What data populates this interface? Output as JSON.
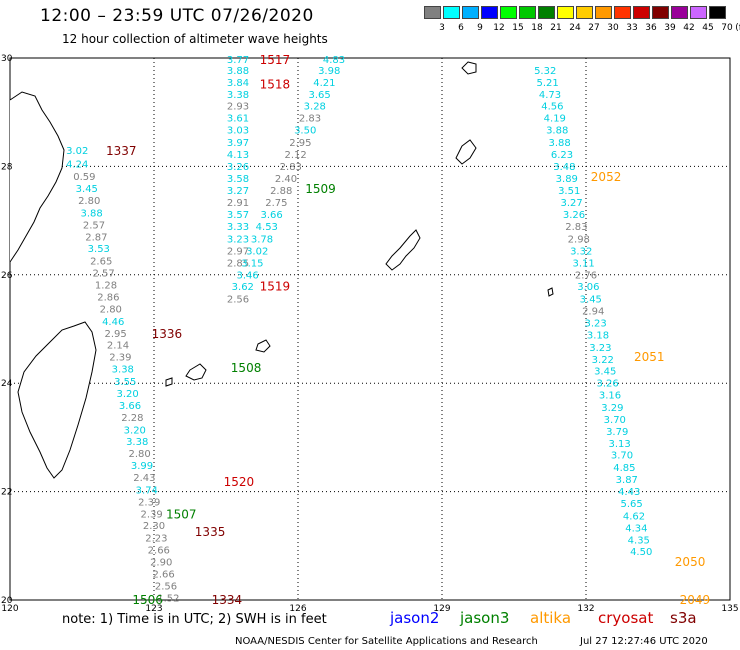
{
  "header": {
    "title": "12:00 – 23:59 UTC 07/26/2020",
    "subtitle": "12 hour collection of altimeter wave heights"
  },
  "legend": {
    "unit": "(ft)",
    "items": [
      {
        "label": "3",
        "color": "#808080"
      },
      {
        "label": "6",
        "color": "#00ffff"
      },
      {
        "label": "9",
        "color": "#00b0ff"
      },
      {
        "label": "12",
        "color": "#0000ff"
      },
      {
        "label": "15",
        "color": "#00ff00"
      },
      {
        "label": "18",
        "color": "#00c800"
      },
      {
        "label": "21",
        "color": "#008000"
      },
      {
        "label": "24",
        "color": "#ffff00"
      },
      {
        "label": "27",
        "color": "#ffcc00"
      },
      {
        "label": "30",
        "color": "#ff9900"
      },
      {
        "label": "33",
        "color": "#ff3300"
      },
      {
        "label": "36",
        "color": "#cc0000"
      },
      {
        "label": "39",
        "color": "#800000"
      },
      {
        "label": "42",
        "color": "#990099"
      },
      {
        "label": "45",
        "color": "#cc66ff"
      },
      {
        "label": "70",
        "color": "#000000"
      }
    ]
  },
  "map": {
    "lat_labels": [
      "30",
      "28",
      "26",
      "24",
      "22",
      "20"
    ],
    "lon_labels": [
      "120",
      "123",
      "126",
      "129",
      "132",
      "135"
    ],
    "lon_range": [
      120,
      135
    ],
    "lat_range": [
      20,
      30
    ],
    "grid": "dotted"
  },
  "colors": {
    "jason2": "#0000ff",
    "jason3": "#008000",
    "altika": "#ff9900",
    "cryosat": "#cc0000",
    "s3a": "#800000",
    "low_swh": "#808080",
    "mid_swh": "#00d0e0"
  },
  "tracks": [
    {
      "time": "1517",
      "sat": "cryosat",
      "lon": 125.2,
      "lat": 29.98
    },
    {
      "time": "1518",
      "sat": "cryosat",
      "lon": 125.2,
      "lat": 29.53
    },
    {
      "time": "1509",
      "sat": "jason3",
      "lon": 126.15,
      "lat": 27.6
    },
    {
      "time": "1519",
      "sat": "cryosat",
      "lon": 125.2,
      "lat": 25.8
    },
    {
      "time": "1508",
      "sat": "jason3",
      "lon": 124.6,
      "lat": 24.3
    },
    {
      "time": "1520",
      "sat": "cryosat",
      "lon": 124.45,
      "lat": 22.2
    },
    {
      "time": "1507",
      "sat": "jason3",
      "lon": 123.25,
      "lat": 21.6
    },
    {
      "time": "1506",
      "sat": "jason3",
      "lon": 122.55,
      "lat": 20.02
    },
    {
      "time": "1337",
      "sat": "s3a",
      "lon": 122.0,
      "lat": 28.3
    },
    {
      "time": "1336",
      "sat": "s3a",
      "lon": 122.95,
      "lat": 24.93
    },
    {
      "time": "1335",
      "sat": "s3a",
      "lon": 123.85,
      "lat": 21.27
    },
    {
      "time": "1334",
      "sat": "s3a",
      "lon": 124.2,
      "lat": 20.02
    },
    {
      "time": "2052",
      "sat": "altika",
      "lon": 132.1,
      "lat": 27.82
    },
    {
      "time": "2051",
      "sat": "altika",
      "lon": 133.0,
      "lat": 24.5
    },
    {
      "time": "2050",
      "sat": "altika",
      "lon": 133.85,
      "lat": 20.72
    },
    {
      "time": "2049",
      "sat": "altika",
      "lon": 133.95,
      "lat": 20.02
    }
  ],
  "swh_points": [
    {
      "v": "3.77",
      "c": "cyan",
      "lon": 124.75,
      "lat": 29.98
    },
    {
      "v": "3.88",
      "c": "cyan",
      "lon": 124.75,
      "lat": 29.78
    },
    {
      "v": "3.84",
      "c": "cyan",
      "lon": 124.75,
      "lat": 29.56
    },
    {
      "v": "3.38",
      "c": "cyan",
      "lon": 124.75,
      "lat": 29.34
    },
    {
      "v": "2.93",
      "c": "gray",
      "lon": 124.75,
      "lat": 29.12
    },
    {
      "v": "3.61",
      "c": "cyan",
      "lon": 124.75,
      "lat": 28.9
    },
    {
      "v": "3.03",
      "c": "cyan",
      "lon": 124.75,
      "lat": 28.68
    },
    {
      "v": "3.97",
      "c": "cyan",
      "lon": 124.75,
      "lat": 28.45
    },
    {
      "v": "4.13",
      "c": "cyan",
      "lon": 124.75,
      "lat": 28.23
    },
    {
      "v": "3.26",
      "c": "cyan",
      "lon": 124.75,
      "lat": 28.01
    },
    {
      "v": "3.58",
      "c": "cyan",
      "lon": 124.75,
      "lat": 27.79
    },
    {
      "v": "3.27",
      "c": "cyan",
      "lon": 124.75,
      "lat": 27.56
    },
    {
      "v": "2.91",
      "c": "gray",
      "lon": 124.75,
      "lat": 27.34
    },
    {
      "v": "3.57",
      "c": "cyan",
      "lon": 124.75,
      "lat": 27.12
    },
    {
      "v": "3.33",
      "c": "cyan",
      "lon": 124.75,
      "lat": 26.9
    },
    {
      "v": "3.23",
      "c": "cyan",
      "lon": 124.75,
      "lat": 26.67
    },
    {
      "v": "2.97",
      "c": "gray",
      "lon": 124.75,
      "lat": 26.45
    },
    {
      "v": "2.85",
      "c": "gray",
      "lon": 124.75,
      "lat": 26.23
    },
    {
      "v": "4.83",
      "c": "cyan",
      "lon": 126.75,
      "lat": 29.98
    },
    {
      "v": "3.98",
      "c": "cyan",
      "lon": 126.65,
      "lat": 29.78
    },
    {
      "v": "4.21",
      "c": "cyan",
      "lon": 126.55,
      "lat": 29.56
    },
    {
      "v": "3.65",
      "c": "cyan",
      "lon": 126.45,
      "lat": 29.34
    },
    {
      "v": "3.28",
      "c": "cyan",
      "lon": 126.35,
      "lat": 29.12
    },
    {
      "v": "2.83",
      "c": "gray",
      "lon": 126.25,
      "lat": 28.9
    },
    {
      "v": "3.50",
      "c": "cyan",
      "lon": 126.15,
      "lat": 28.68
    },
    {
      "v": "2.95",
      "c": "gray",
      "lon": 126.05,
      "lat": 28.45
    },
    {
      "v": "2.12",
      "c": "gray",
      "lon": 125.95,
      "lat": 28.23
    },
    {
      "v": "2.83",
      "c": "gray",
      "lon": 125.85,
      "lat": 28.01
    },
    {
      "v": "2.40",
      "c": "gray",
      "lon": 125.75,
      "lat": 27.79
    },
    {
      "v": "2.88",
      "c": "gray",
      "lon": 125.65,
      "lat": 27.56
    },
    {
      "v": "2.75",
      "c": "gray",
      "lon": 125.55,
      "lat": 27.34
    },
    {
      "v": "3.66",
      "c": "cyan",
      "lon": 125.45,
      "lat": 27.12
    },
    {
      "v": "4.53",
      "c": "cyan",
      "lon": 125.35,
      "lat": 26.9
    },
    {
      "v": "3.78",
      "c": "cyan",
      "lon": 125.25,
      "lat": 26.67
    },
    {
      "v": "3.02",
      "c": "cyan",
      "lon": 125.15,
      "lat": 26.45
    },
    {
      "v": "3.15",
      "c": "cyan",
      "lon": 125.05,
      "lat": 26.23
    },
    {
      "v": "3.46",
      "c": "cyan",
      "lon": 124.95,
      "lat": 26.01
    },
    {
      "v": "3.62",
      "c": "cyan",
      "lon": 124.85,
      "lat": 25.79
    },
    {
      "v": "2.56",
      "c": "gray",
      "lon": 124.75,
      "lat": 25.56
    },
    {
      "v": "5.32",
      "c": "cyan",
      "lon": 131.15,
      "lat": 29.78
    },
    {
      "v": "5.21",
      "c": "cyan",
      "lon": 131.2,
      "lat": 29.56
    },
    {
      "v": "4.73",
      "c": "cyan",
      "lon": 131.25,
      "lat": 29.34
    },
    {
      "v": "4.56",
      "c": "cyan",
      "lon": 131.3,
      "lat": 29.12
    },
    {
      "v": "4.19",
      "c": "cyan",
      "lon": 131.35,
      "lat": 28.9
    },
    {
      "v": "3.88",
      "c": "cyan",
      "lon": 131.4,
      "lat": 28.68
    },
    {
      "v": "3.88",
      "c": "cyan",
      "lon": 131.45,
      "lat": 28.45
    },
    {
      "v": "6.23",
      "c": "cyan",
      "lon": 131.5,
      "lat": 28.23
    },
    {
      "v": "3.48",
      "c": "cyan",
      "lon": 131.55,
      "lat": 28.01
    },
    {
      "v": "3.89",
      "c": "cyan",
      "lon": 131.6,
      "lat": 27.79
    },
    {
      "v": "3.51",
      "c": "cyan",
      "lon": 131.65,
      "lat": 27.56
    },
    {
      "v": "3.27",
      "c": "cyan",
      "lon": 131.7,
      "lat": 27.34
    },
    {
      "v": "3.26",
      "c": "cyan",
      "lon": 131.75,
      "lat": 27.12
    },
    {
      "v": "2.83",
      "c": "gray",
      "lon": 131.8,
      "lat": 26.9
    },
    {
      "v": "2.98",
      "c": "gray",
      "lon": 131.85,
      "lat": 26.67
    },
    {
      "v": "3.32",
      "c": "cyan",
      "lon": 131.9,
      "lat": 26.45
    },
    {
      "v": "3.11",
      "c": "cyan",
      "lon": 131.95,
      "lat": 26.23
    },
    {
      "v": "2.76",
      "c": "gray",
      "lon": 132.0,
      "lat": 26.01
    },
    {
      "v": "3.06",
      "c": "cyan",
      "lon": 132.05,
      "lat": 25.79
    },
    {
      "v": "3.45",
      "c": "cyan",
      "lon": 132.1,
      "lat": 25.56
    },
    {
      "v": "2.94",
      "c": "gray",
      "lon": 132.15,
      "lat": 25.34
    },
    {
      "v": "3.23",
      "c": "cyan",
      "lon": 132.2,
      "lat": 25.12
    },
    {
      "v": "3.18",
      "c": "cyan",
      "lon": 132.25,
      "lat": 24.9
    },
    {
      "v": "3.23",
      "c": "cyan",
      "lon": 132.3,
      "lat": 24.67
    },
    {
      "v": "3.22",
      "c": "cyan",
      "lon": 132.35,
      "lat": 24.45
    },
    {
      "v": "3.45",
      "c": "cyan",
      "lon": 132.4,
      "lat": 24.23
    },
    {
      "v": "3.26",
      "c": "cyan",
      "lon": 132.45,
      "lat": 24.01
    },
    {
      "v": "3.16",
      "c": "cyan",
      "lon": 132.5,
      "lat": 23.79
    },
    {
      "v": "3.29",
      "c": "cyan",
      "lon": 132.55,
      "lat": 23.56
    },
    {
      "v": "3.70",
      "c": "cyan",
      "lon": 132.6,
      "lat": 23.34
    },
    {
      "v": "3.79",
      "c": "cyan",
      "lon": 132.65,
      "lat": 23.12
    },
    {
      "v": "3.13",
      "c": "cyan",
      "lon": 132.7,
      "lat": 22.9
    },
    {
      "v": "3.70",
      "c": "cyan",
      "lon": 132.75,
      "lat": 22.68
    },
    {
      "v": "4.85",
      "c": "cyan",
      "lon": 132.8,
      "lat": 22.45
    },
    {
      "v": "3.87",
      "c": "cyan",
      "lon": 132.85,
      "lat": 22.23
    },
    {
      "v": "4.43",
      "c": "cyan",
      "lon": 132.9,
      "lat": 22.01
    },
    {
      "v": "5.65",
      "c": "cyan",
      "lon": 132.95,
      "lat": 21.79
    },
    {
      "v": "4.62",
      "c": "cyan",
      "lon": 133.0,
      "lat": 21.56
    },
    {
      "v": "4.34",
      "c": "cyan",
      "lon": 133.05,
      "lat": 21.34
    },
    {
      "v": "4.35",
      "c": "cyan",
      "lon": 133.1,
      "lat": 21.12
    },
    {
      "v": "4.50",
      "c": "cyan",
      "lon": 133.15,
      "lat": 20.9
    },
    {
      "v": "3.02",
      "c": "cyan",
      "lon": 121.4,
      "lat": 28.3
    },
    {
      "v": "4.24",
      "c": "cyan",
      "lon": 121.4,
      "lat": 28.05
    },
    {
      "v": "0.59",
      "c": "gray",
      "lon": 121.55,
      "lat": 27.82
    },
    {
      "v": "3.45",
      "c": "cyan",
      "lon": 121.6,
      "lat": 27.6
    },
    {
      "v": "2.80",
      "c": "gray",
      "lon": 121.65,
      "lat": 27.38
    },
    {
      "v": "3.88",
      "c": "cyan",
      "lon": 121.7,
      "lat": 27.15
    },
    {
      "v": "2.57",
      "c": "gray",
      "lon": 121.75,
      "lat": 26.93
    },
    {
      "v": "2.87",
      "c": "gray",
      "lon": 121.8,
      "lat": 26.71
    },
    {
      "v": "3.53",
      "c": "cyan",
      "lon": 121.85,
      "lat": 26.49
    },
    {
      "v": "2.65",
      "c": "gray",
      "lon": 121.9,
      "lat": 26.26
    },
    {
      "v": "2.57",
      "c": "gray",
      "lon": 121.95,
      "lat": 26.04
    },
    {
      "v": "1.28",
      "c": "gray",
      "lon": 122.0,
      "lat": 25.82
    },
    {
      "v": "2.86",
      "c": "gray",
      "lon": 122.05,
      "lat": 25.6
    },
    {
      "v": "2.80",
      "c": "gray",
      "lon": 122.1,
      "lat": 25.38
    },
    {
      "v": "4.46",
      "c": "cyan",
      "lon": 122.15,
      "lat": 25.15
    },
    {
      "v": "2.95",
      "c": "gray",
      "lon": 122.2,
      "lat": 24.93
    },
    {
      "v": "2.14",
      "c": "gray",
      "lon": 122.25,
      "lat": 24.71
    },
    {
      "v": "2.39",
      "c": "gray",
      "lon": 122.3,
      "lat": 24.49
    },
    {
      "v": "3.38",
      "c": "cyan",
      "lon": 122.35,
      "lat": 24.27
    },
    {
      "v": "3.55",
      "c": "cyan",
      "lon": 122.4,
      "lat": 24.04
    },
    {
      "v": "3.20",
      "c": "cyan",
      "lon": 122.45,
      "lat": 23.82
    },
    {
      "v": "3.66",
      "c": "cyan",
      "lon": 122.5,
      "lat": 23.6
    },
    {
      "v": "2.28",
      "c": "gray",
      "lon": 122.55,
      "lat": 23.38
    },
    {
      "v": "3.20",
      "c": "cyan",
      "lon": 122.6,
      "lat": 23.15
    },
    {
      "v": "3.38",
      "c": "cyan",
      "lon": 122.65,
      "lat": 22.93
    },
    {
      "v": "2.80",
      "c": "gray",
      "lon": 122.7,
      "lat": 22.71
    },
    {
      "v": "3.99",
      "c": "cyan",
      "lon": 122.75,
      "lat": 22.49
    },
    {
      "v": "2.43",
      "c": "gray",
      "lon": 122.8,
      "lat": 22.27
    },
    {
      "v": "3.74",
      "c": "cyan",
      "lon": 122.85,
      "lat": 22.04
    },
    {
      "v": "2.39",
      "c": "gray",
      "lon": 122.9,
      "lat": 21.82
    },
    {
      "v": "2.39",
      "c": "gray",
      "lon": 122.95,
      "lat": 21.6
    },
    {
      "v": "2.30",
      "c": "gray",
      "lon": 123.0,
      "lat": 21.38
    },
    {
      "v": "2.23",
      "c": "gray",
      "lon": 123.05,
      "lat": 21.15
    },
    {
      "v": "2.66",
      "c": "gray",
      "lon": 123.1,
      "lat": 20.93
    },
    {
      "v": "2.90",
      "c": "gray",
      "lon": 123.15,
      "lat": 20.71
    },
    {
      "v": "2.66",
      "c": "gray",
      "lon": 123.2,
      "lat": 20.49
    },
    {
      "v": "2.56",
      "c": "gray",
      "lon": 123.25,
      "lat": 20.27
    },
    {
      "v": "1.52",
      "c": "gray",
      "lon": 123.3,
      "lat": 20.05
    }
  ],
  "footer": {
    "note": "note: 1) Time is in UTC; 2) SWH is in feet",
    "missions": [
      {
        "label": "jason2",
        "color": "#0000ff"
      },
      {
        "label": "jason3",
        "color": "#008000"
      },
      {
        "label": "altika",
        "color": "#ff9900"
      },
      {
        "label": "cryosat",
        "color": "#cc0000"
      },
      {
        "label": "s3a",
        "color": "#800000"
      }
    ],
    "credit": "NOAA/NESDIS Center for Satellite Applications and Research",
    "generated": "Jul 27 12:27:46 UTC 2020"
  }
}
